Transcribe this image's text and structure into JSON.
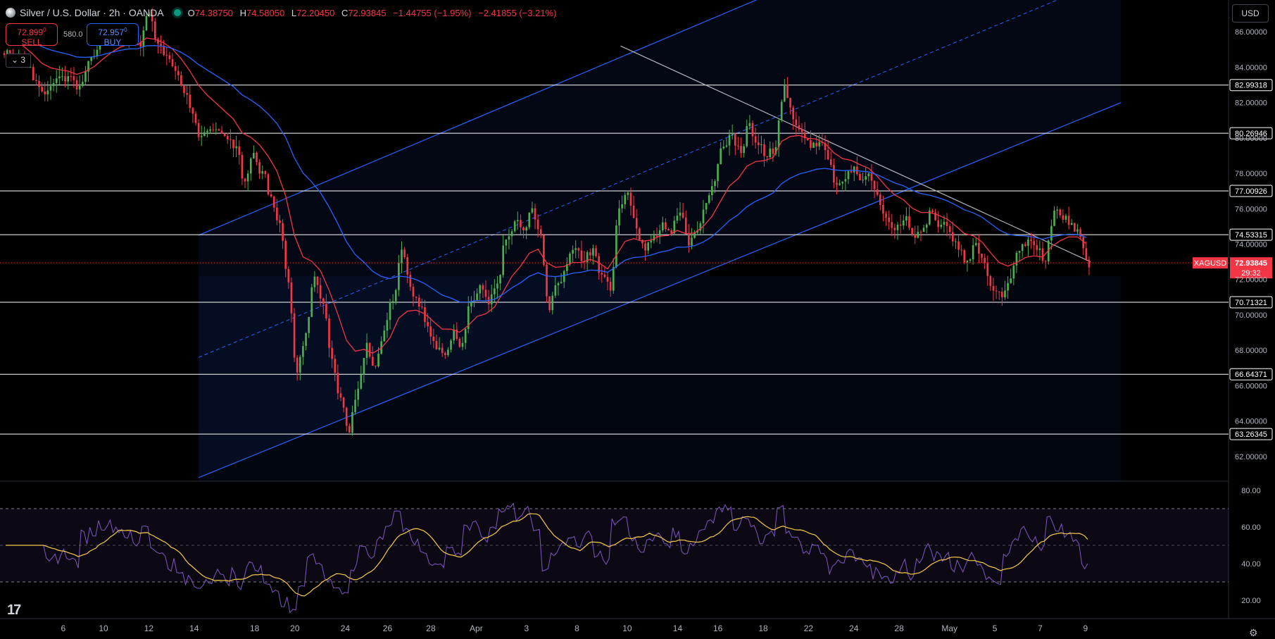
{
  "header": {
    "symbol": "Silver / U.S. Dollar · 2h · OANDA",
    "open_label": "O",
    "open": "74.38750",
    "high_label": "H",
    "high": "74.58050",
    "low_label": "L",
    "low": "72.20450",
    "close_label": "C",
    "close": "72.93845",
    "change": "−1.44755 (−1.95%)",
    "change2": "−2.41855 (−3.21%)"
  },
  "trade": {
    "sell_price": "72.899",
    "sell_price_sup": "0",
    "sell_label": "SELL",
    "buy_price": "72.957",
    "buy_price_sup": "0",
    "buy_label": "BUY",
    "spread": "580.0"
  },
  "indicators_count": "3",
  "currency": "USD",
  "colors": {
    "up": "#4caf50",
    "down": "#f23645",
    "ema_fast": "#f23645",
    "ema_slow": "#2962ff",
    "channel": "#2962ff",
    "rsi": "#7e57c2",
    "rsi_ma": "#f7c948",
    "hline": "#ffffff"
  },
  "chart_data": {
    "type": "candlestick",
    "price_axis": {
      "ticks": [
        "86.00000",
        "84.00000",
        "82.00000",
        "80.00000",
        "78.00000",
        "76.00000",
        "74.00000",
        "72.00000",
        "70.00000",
        "68.00000",
        "66.00000",
        "64.00000",
        "62.00000"
      ],
      "range": [
        60.6,
        87.8
      ]
    },
    "time_axis": {
      "labels": [
        "6",
        "10",
        "12",
        "14",
        "18",
        "20",
        "24",
        "26",
        "28",
        "Apr",
        "3",
        "8",
        "10",
        "14",
        "16",
        "18",
        "22",
        "24",
        "28",
        "May",
        "5",
        "7",
        "9"
      ]
    },
    "horizontal_levels": [
      "82.99318",
      "80.26946",
      "77.00926",
      "74.53315",
      "70.71321",
      "66.64371",
      "63.26345"
    ],
    "last_price": {
      "symbol": "XAGUSD",
      "price": "72.93845",
      "countdown": "29:32"
    },
    "price_path": [
      [
        0,
        84.8
      ],
      [
        2,
        84.2
      ],
      [
        4,
        82.5
      ],
      [
        6,
        83.7
      ],
      [
        8,
        82.9
      ],
      [
        9,
        84.4
      ],
      [
        11,
        85.8
      ],
      [
        13,
        86.4
      ],
      [
        15,
        85.3
      ],
      [
        16,
        86.9
      ],
      [
        17,
        85.5
      ],
      [
        19,
        83.8
      ],
      [
        21,
        81.6
      ],
      [
        22,
        79.9
      ],
      [
        24,
        80.6
      ],
      [
        26,
        79.3
      ],
      [
        27,
        77.7
      ],
      [
        28,
        79.2
      ],
      [
        29,
        78.1
      ],
      [
        30,
        76.6
      ],
      [
        31,
        75.3
      ],
      [
        32,
        72.0
      ],
      [
        33,
        66.5
      ],
      [
        34,
        69.0
      ],
      [
        35,
        72.3
      ],
      [
        36,
        70.6
      ],
      [
        37,
        67.6
      ],
      [
        38,
        65.5
      ],
      [
        39,
        63.2
      ],
      [
        40,
        65.9
      ],
      [
        41,
        68.5
      ],
      [
        42,
        67.3
      ],
      [
        43,
        68.9
      ],
      [
        44,
        70.9
      ],
      [
        45,
        73.5
      ],
      [
        46,
        71.6
      ],
      [
        47,
        70.6
      ],
      [
        48,
        69.3
      ],
      [
        49,
        68.1
      ],
      [
        50,
        67.6
      ],
      [
        51,
        69.1
      ],
      [
        52,
        68.6
      ],
      [
        53,
        70.9
      ],
      [
        54,
        71.7
      ],
      [
        55,
        70.8
      ],
      [
        56,
        72.0
      ],
      [
        57,
        74.3
      ],
      [
        58,
        75.2
      ],
      [
        59,
        74.7
      ],
      [
        60,
        75.8
      ],
      [
        61,
        74.6
      ],
      [
        62,
        70.3
      ],
      [
        63,
        71.8
      ],
      [
        64,
        72.9
      ],
      [
        65,
        73.6
      ],
      [
        66,
        73.0
      ],
      [
        67,
        73.8
      ],
      [
        68,
        72.4
      ],
      [
        69,
        71.5
      ],
      [
        70,
        75.9
      ],
      [
        71,
        77.1
      ],
      [
        72,
        75.0
      ],
      [
        73,
        73.5
      ],
      [
        74,
        74.3
      ],
      [
        75,
        75.0
      ],
      [
        76,
        74.4
      ],
      [
        77,
        75.6
      ],
      [
        78,
        73.8
      ],
      [
        79,
        74.7
      ],
      [
        80,
        76.3
      ],
      [
        81,
        77.8
      ],
      [
        82,
        79.6
      ],
      [
        83,
        80.3
      ],
      [
        84,
        79.3
      ],
      [
        85,
        80.9
      ],
      [
        86,
        79.5
      ],
      [
        87,
        78.8
      ],
      [
        88,
        79.6
      ],
      [
        89,
        82.8
      ],
      [
        90,
        81.3
      ],
      [
        91,
        80.4
      ],
      [
        92,
        79.4
      ],
      [
        93,
        79.8
      ],
      [
        94,
        79.0
      ],
      [
        95,
        77.1
      ],
      [
        96,
        77.7
      ],
      [
        97,
        78.2
      ],
      [
        98,
        77.6
      ],
      [
        99,
        77.6
      ],
      [
        100,
        76.4
      ],
      [
        101,
        75.1
      ],
      [
        102,
        74.9
      ],
      [
        103,
        75.7
      ],
      [
        104,
        74.6
      ],
      [
        105,
        75.1
      ],
      [
        106,
        75.7
      ],
      [
        107,
        75.0
      ],
      [
        108,
        74.6
      ],
      [
        109,
        73.5
      ],
      [
        110,
        73.2
      ],
      [
        111,
        73.9
      ],
      [
        112,
        73.1
      ],
      [
        113,
        71.6
      ],
      [
        114,
        71.2
      ],
      [
        115,
        72.3
      ],
      [
        116,
        73.6
      ],
      [
        117,
        74.1
      ],
      [
        118,
        73.5
      ],
      [
        119,
        73.2
      ],
      [
        120,
        75.9
      ],
      [
        121,
        75.6
      ],
      [
        122,
        75.3
      ],
      [
        123,
        74.4
      ],
      [
        124,
        72.9
      ]
    ],
    "rsi": {
      "levels": [
        "80.00",
        "60.00",
        "40.00",
        "20.00"
      ],
      "range": [
        10,
        85
      ],
      "band": [
        30,
        70
      ]
    }
  }
}
